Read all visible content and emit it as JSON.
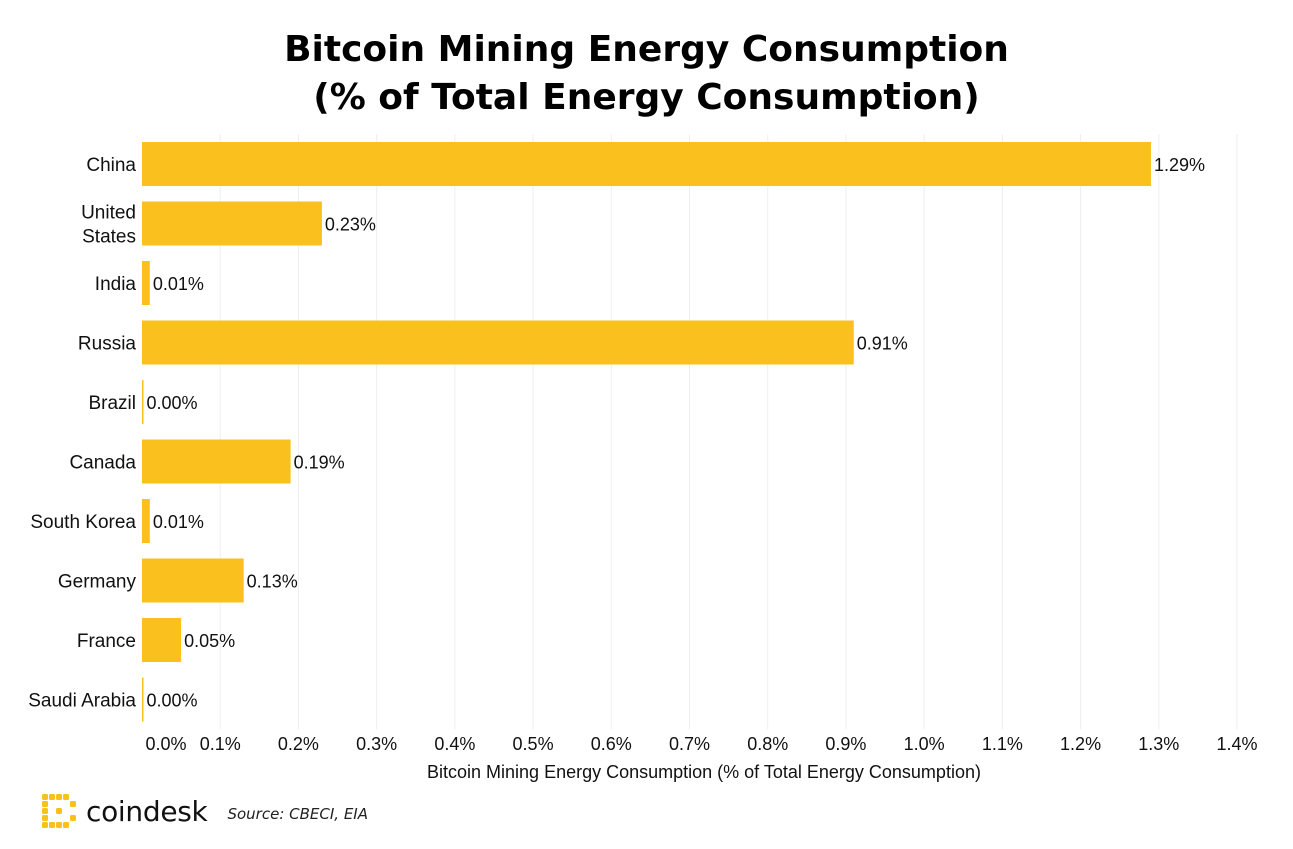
{
  "title": {
    "line1": "Bitcoin Mining Energy Consumption",
    "line2": "(% of Total Energy Consumption)"
  },
  "chart_data": {
    "type": "bar",
    "orientation": "horizontal",
    "categories": [
      "China",
      "United States",
      "India",
      "Russia",
      "Brazil",
      "Canada",
      "South Korea",
      "Germany",
      "France",
      "Saudi Arabia"
    ],
    "values": [
      1.29,
      0.23,
      0.01,
      0.91,
      0.0,
      0.19,
      0.01,
      0.13,
      0.05,
      0.0
    ],
    "value_labels": [
      "1.29%",
      "0.23%",
      "0.01%",
      "0.91%",
      "0.00%",
      "0.19%",
      "0.01%",
      "0.13%",
      "0.05%",
      "0.00%"
    ],
    "xlabel": "Bitcoin Mining Energy Consumption (% of Total Energy Consumption)",
    "xlim": [
      0,
      1.4
    ],
    "xticks": [
      0,
      0.1,
      0.2,
      0.3,
      0.4,
      0.5,
      0.6,
      0.7,
      0.8,
      0.9,
      1.0,
      1.1,
      1.2,
      1.3,
      1.4
    ],
    "xtick_labels": [
      "0.0%",
      "0.1%",
      "0.2%",
      "0.3%",
      "0.4%",
      "0.5%",
      "0.6%",
      "0.7%",
      "0.8%",
      "0.9%",
      "1.0%",
      "1.1%",
      "1.2%",
      "1.3%",
      "1.4%"
    ],
    "grid": "vertical",
    "bar_color": "#FAC01E",
    "grid_color": "#EEEEEE"
  },
  "footer": {
    "logo_text": "coindesk",
    "logo_icon": "coindesk-logo-icon",
    "logo_color": "#FAC01E",
    "source": "Source: CBECI, EIA"
  }
}
